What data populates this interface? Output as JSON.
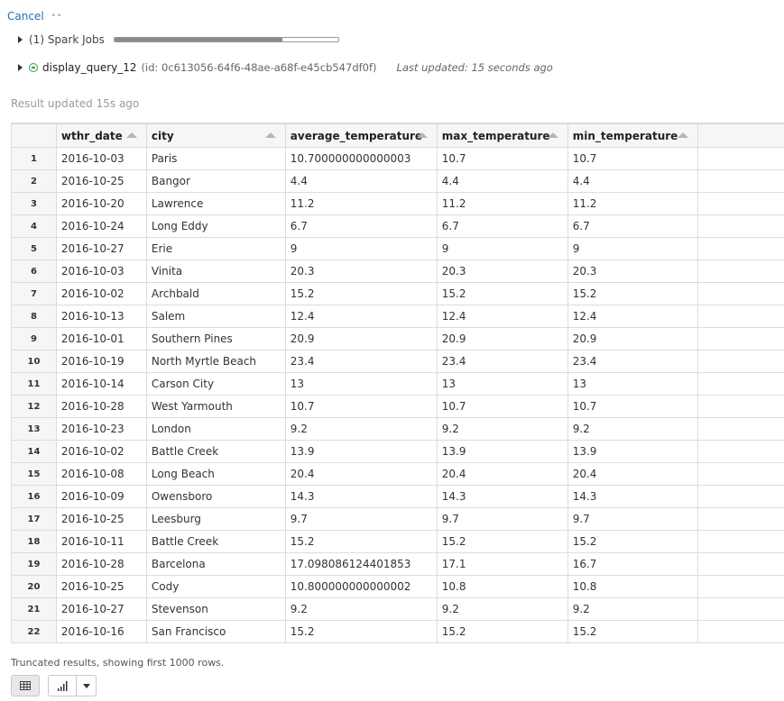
{
  "toolbar": {
    "cancel_label": "Cancel",
    "spinner_glyph": "••"
  },
  "jobs": {
    "label": "(1) Spark Jobs",
    "progress_fraction": 0.75
  },
  "query": {
    "name": "display_query_12",
    "id_text": "(id: 0c613056-64f6-48ae-a68f-e45cb547df0f)",
    "last_updated": "Last updated: 15 seconds ago",
    "status_icon": "minus-circle-icon",
    "status_color": "#2e9e4a"
  },
  "result_updated": "Result updated 15s ago",
  "table": {
    "columns": [
      "wthr_date",
      "city",
      "average_temperature",
      "max_temperature",
      "min_temperature"
    ],
    "rows": [
      [
        "1",
        "2016-10-03",
        "Paris",
        "10.700000000000003",
        "10.7",
        "10.7"
      ],
      [
        "2",
        "2016-10-25",
        "Bangor",
        "4.4",
        "4.4",
        "4.4"
      ],
      [
        "3",
        "2016-10-20",
        "Lawrence",
        "11.2",
        "11.2",
        "11.2"
      ],
      [
        "4",
        "2016-10-24",
        "Long Eddy",
        "6.7",
        "6.7",
        "6.7"
      ],
      [
        "5",
        "2016-10-27",
        "Erie",
        "9",
        "9",
        "9"
      ],
      [
        "6",
        "2016-10-03",
        "Vinita",
        "20.3",
        "20.3",
        "20.3"
      ],
      [
        "7",
        "2016-10-02",
        "Archbald",
        "15.2",
        "15.2",
        "15.2"
      ],
      [
        "8",
        "2016-10-13",
        "Salem",
        "12.4",
        "12.4",
        "12.4"
      ],
      [
        "9",
        "2016-10-01",
        "Southern Pines",
        "20.9",
        "20.9",
        "20.9"
      ],
      [
        "10",
        "2016-10-19",
        "North Myrtle Beach",
        "23.4",
        "23.4",
        "23.4"
      ],
      [
        "11",
        "2016-10-14",
        "Carson City",
        "13",
        "13",
        "13"
      ],
      [
        "12",
        "2016-10-28",
        "West Yarmouth",
        "10.7",
        "10.7",
        "10.7"
      ],
      [
        "13",
        "2016-10-23",
        "London",
        "9.2",
        "9.2",
        "9.2"
      ],
      [
        "14",
        "2016-10-02",
        "Battle Creek",
        "13.9",
        "13.9",
        "13.9"
      ],
      [
        "15",
        "2016-10-08",
        "Long Beach",
        "20.4",
        "20.4",
        "20.4"
      ],
      [
        "16",
        "2016-10-09",
        "Owensboro",
        "14.3",
        "14.3",
        "14.3"
      ],
      [
        "17",
        "2016-10-25",
        "Leesburg",
        "9.7",
        "9.7",
        "9.7"
      ],
      [
        "18",
        "2016-10-11",
        "Battle Creek",
        "15.2",
        "15.2",
        "15.2"
      ],
      [
        "19",
        "2016-10-28",
        "Barcelona",
        "17.098086124401853",
        "17.1",
        "16.7"
      ],
      [
        "20",
        "2016-10-25",
        "Cody",
        "10.800000000000002",
        "10.8",
        "10.8"
      ],
      [
        "21",
        "2016-10-27",
        "Stevenson",
        "9.2",
        "9.2",
        "9.2"
      ],
      [
        "22",
        "2016-10-16",
        "San Francisco",
        "15.2",
        "15.2",
        "15.2"
      ]
    ]
  },
  "footer": {
    "truncated": "Truncated results, showing first 1000 rows."
  },
  "view_buttons": {
    "table_icon": "table-icon",
    "chart_icon": "bar-chart-icon",
    "caret_icon": "chevron-down-icon"
  }
}
